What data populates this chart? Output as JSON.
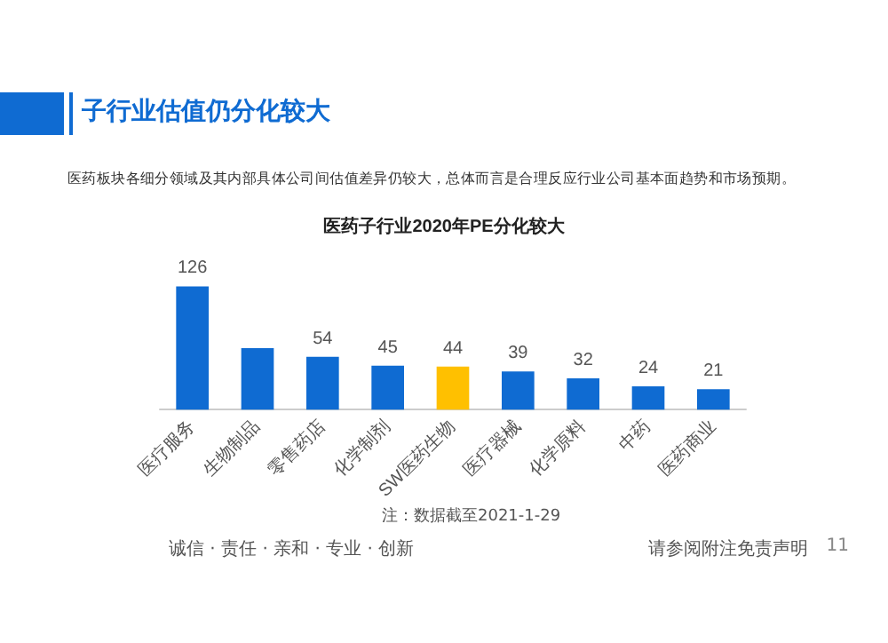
{
  "chart_data": {
    "type": "bar",
    "title": "医药子行业2020年PE分化较大",
    "subtitle": "医药板块各细分领域及其内部具体公司间估值差异仍较大，总体而言是合理反应行业公司基本面趋势和市场预期。",
    "annotations": [
      "子行业估值仍分化较大",
      "注：数据截至2021-1-29",
      "诚信 · 责任 · 亲和 · 专业 · 创新",
      "请参阅附注免责声明",
      "11"
    ],
    "categories": [
      "医疗服务",
      "生物制品",
      "零售药店",
      "化学制剂",
      "SW医药生物",
      "医疗器械",
      "化学原料",
      "中药",
      "医药商业"
    ],
    "values": [
      126,
      63,
      54,
      45,
      44,
      39,
      32,
      24,
      21
    ],
    "value_labels": [
      "126",
      null,
      "54",
      "45",
      "44",
      "39",
      "32",
      "24",
      "21"
    ],
    "colors": [
      "#0f6bd2",
      "#0f6bd2",
      "#0f6bd2",
      "#0f6bd2",
      "#ffc000",
      "#0f6bd2",
      "#0f6bd2",
      "#0f6bd2",
      "#0f6bd2"
    ]
  }
}
